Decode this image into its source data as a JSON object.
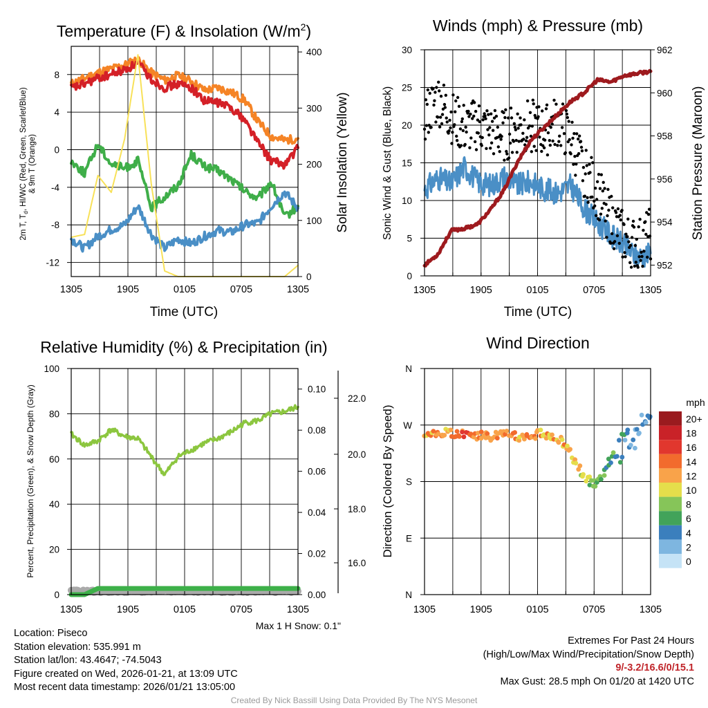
{
  "time_ticks": [
    "1305",
    "1905",
    "0105",
    "0705",
    "1305"
  ],
  "time_label": "Time (UTC)",
  "panels": {
    "temperature": {
      "title": "Temperature (F) & Insolation (W/m",
      "title_sup": "2",
      "title_end": ")",
      "ylabel_line1": "2m T, T",
      "ylabel_sub": "d",
      "ylabel_line1b": ", HI/WC (Red, Green, Scarlet/Blue)",
      "ylabel_line2": "& 9m T (Orange)",
      "y2label": "Solar Insolation (Yellow)"
    },
    "winds": {
      "title": "Winds (mph) & Pressure (mb)",
      "ylabel": "Sonic Wind & Gust (Blue, Black)",
      "y2label": "Station Pressure (Maroon)"
    },
    "humidity": {
      "title": "Relative Humidity (%) & Precipitation (in)",
      "ylabel": "Percent, Precipitation (Green), & Snow Depth (Gray)",
      "note": "Max 1 H Snow: 0.1\""
    },
    "direction": {
      "title": "Wind Direction",
      "ylabel": "Direction (Colored By Speed)",
      "legend_title": "mph",
      "legend_labels": [
        "20+",
        "18",
        "16",
        "14",
        "12",
        "10",
        "8",
        "6",
        "4",
        "2",
        "0"
      ]
    }
  },
  "chart_data": [
    {
      "id": "temperature",
      "type": "line",
      "title": "Temperature (F) & Insolation (W/m2)",
      "xlabel": "Time (UTC)",
      "ylim": [
        -13.5,
        11
      ],
      "yticks": [
        "8",
        "4",
        "0",
        "-4",
        "-8",
        "-12"
      ],
      "y2lim": [
        0,
        410
      ],
      "y2ticks": [
        "400",
        "300",
        "200",
        "100",
        "0"
      ],
      "series": [
        {
          "name": "9m T",
          "color": "#f58426",
          "values": [
            7.0,
            7.6,
            8.2,
            8.6,
            9.0,
            9.6,
            8.2,
            7.4,
            7.9,
            7.3,
            6.3,
            6.6,
            6.1,
            5.3,
            3.0,
            1.4,
            1.0,
            1.2
          ]
        },
        {
          "name": "2m T",
          "color": "#d42027",
          "values": [
            6.5,
            7.0,
            7.6,
            8.0,
            8.5,
            9.2,
            7.5,
            6.6,
            7.0,
            6.6,
            5.2,
            5.0,
            4.5,
            3.2,
            0.8,
            -1.2,
            -1.6,
            0.2
          ]
        },
        {
          "name": "Td",
          "color": "#3fae49",
          "values": [
            -1.2,
            -2.5,
            0.6,
            -1.5,
            -2.0,
            -1.2,
            -6.2,
            -5.0,
            -3.8,
            -0.5,
            -1.8,
            -2.2,
            -3.2,
            -4.4,
            -5.2,
            -3.4,
            -7.2,
            -6.0
          ]
        },
        {
          "name": "Wind Chill",
          "color": "#4a8fc6",
          "values": [
            -9.5,
            -10.5,
            -9.2,
            -8.5,
            -8.0,
            -6.0,
            -9.0,
            -10.5,
            -9.5,
            -10.0,
            -9.2,
            -8.6,
            -8.8,
            -8.0,
            -7.8,
            -6.0,
            -4.5,
            -6.2
          ]
        },
        {
          "name": "Solar Insolation",
          "color": "#f8e158",
          "axis": "right",
          "values": [
            70,
            75,
            180,
            150,
            245,
            395,
            165,
            10,
            0,
            0,
            0,
            0,
            0,
            0,
            0,
            0,
            0,
            20
          ]
        }
      ]
    },
    {
      "id": "winds",
      "type": "line",
      "title": "Winds (mph) & Pressure (mb)",
      "xlabel": "Time (UTC)",
      "ylim": [
        0,
        30
      ],
      "yticks": [
        "30",
        "25",
        "20",
        "15",
        "10",
        "5",
        "0"
      ],
      "y2lim": [
        951.5,
        962
      ],
      "y2ticks": [
        "962",
        "960",
        "958",
        "956",
        "954",
        "952"
      ],
      "series": [
        {
          "name": "Sonic Wind",
          "color": "#4a8fc6",
          "values": [
            11.5,
            13.0,
            12.2,
            14.5,
            12.5,
            12.0,
            13.2,
            12.0,
            12.5,
            11.5,
            11.0,
            12.0,
            9.0,
            7.0,
            5.5,
            4.0,
            2.5,
            3.0
          ]
        },
        {
          "name": "Gust",
          "color": "#000000",
          "values": [
            21.0,
            23.5,
            21.0,
            19.5,
            20.0,
            19.0,
            18.5,
            19.5,
            20.0,
            19.0,
            20.5,
            18.0,
            14.0,
            11.0,
            7.5,
            5.0,
            4.0,
            5.5
          ]
        },
        {
          "name": "Station Pressure",
          "color": "#9e1a1e",
          "axis": "right",
          "values": [
            952.0,
            952.5,
            953.6,
            953.7,
            953.9,
            954.6,
            955.5,
            956.8,
            957.8,
            958.4,
            959.0,
            959.6,
            960.0,
            960.6,
            960.5,
            960.8,
            960.9,
            961.0
          ]
        }
      ]
    },
    {
      "id": "humidity",
      "type": "line",
      "title": "Relative Humidity (%) & Precipitation (in)",
      "ylim": [
        0,
        100
      ],
      "yticks": [
        "100",
        "80",
        "60",
        "40",
        "20",
        "0"
      ],
      "y2lim": [
        0,
        0.11
      ],
      "y2ticks": [
        "0.10",
        "0.08",
        "0.06",
        "0.04",
        "0.02",
        "0.00"
      ],
      "y3ticks": [
        "22.0",
        "20.0",
        "18.0",
        "16.0"
      ],
      "series": [
        {
          "name": "Relative Humidity",
          "color": "#8cc63f",
          "values": [
            71,
            66,
            68,
            73,
            70,
            69,
            61,
            53,
            61,
            64,
            67,
            69,
            72,
            76,
            77,
            80,
            81,
            83
          ]
        },
        {
          "name": "Precipitation",
          "color": "#3db049",
          "axis": "right",
          "values": [
            0.0,
            0.0,
            0.003,
            0.003,
            0.003,
            0.003,
            0.003,
            0.003,
            0.003,
            0.003,
            0.003,
            0.003,
            0.003,
            0.003,
            0.003,
            0.003,
            0.003,
            0.003
          ]
        },
        {
          "name": "Snow Depth",
          "color": "#aaaaaa",
          "values": [
            1.5,
            1.5,
            1.5,
            1.5,
            1.5,
            1.5,
            1.5,
            1.5,
            1.5,
            1.5,
            1.5,
            1.5,
            1.5,
            1.5,
            1.5,
            1.5,
            1.5,
            1.5
          ]
        }
      ]
    },
    {
      "id": "direction",
      "type": "scatter",
      "title": "Wind Direction",
      "yticks": [
        "N",
        "W",
        "S",
        "E",
        "N"
      ],
      "colorbar": [
        "#9a1b1f",
        "#c92228",
        "#e1372e",
        "#f26b2d",
        "#f9a34a",
        "#e5de4b",
        "#86c559",
        "#42a35a",
        "#3b7fbd",
        "#7eb6e0",
        "#c5e3f6"
      ]
    }
  ],
  "info": {
    "location": "Location: Piseco",
    "elevation": "Station elevation: 535.991 m",
    "latlon": "Station lat/lon: 43.4647; -74.5043",
    "created": "Figure created on Wed, 2026-01-21, at 13:09 UTC",
    "recent": "Most recent data timestamp: 2026/01/21 13:05:00",
    "extremes_title": "Extremes For Past 24 Hours",
    "extremes_desc": "(High/Low/Max Wind/Precipitation/Snow Depth)",
    "extremes_values": "9/-3.2/16.6/0/15.1",
    "max_gust": "Max Gust: 28.5 mph On 01/20 at 1420 UTC",
    "credit": "Created By Nick Bassill Using Data Provided By The NYS Mesonet"
  }
}
